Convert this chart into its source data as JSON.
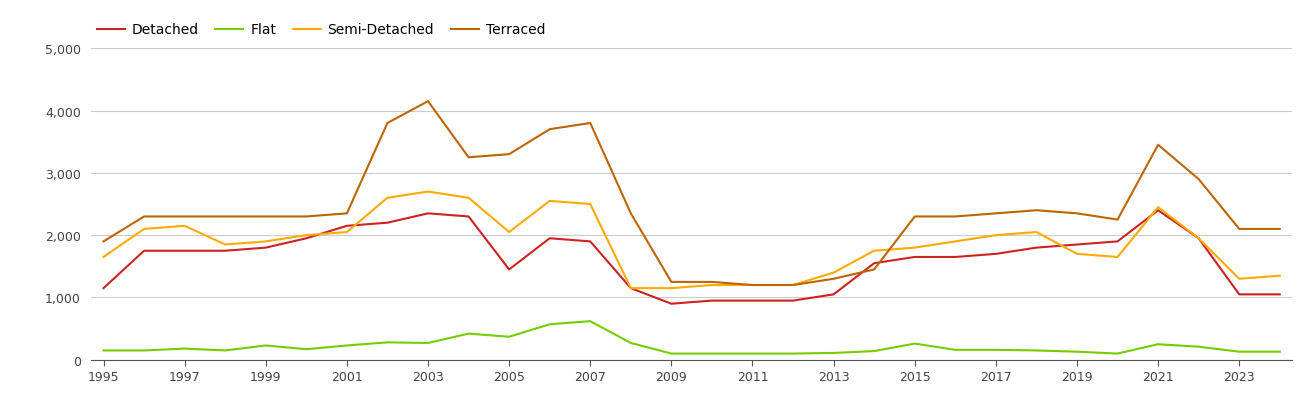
{
  "years": [
    1995,
    1996,
    1997,
    1998,
    1999,
    2000,
    2001,
    2002,
    2003,
    2004,
    2005,
    2006,
    2007,
    2008,
    2009,
    2010,
    2011,
    2012,
    2013,
    2014,
    2015,
    2016,
    2017,
    2018,
    2019,
    2020,
    2021,
    2022,
    2023,
    2024
  ],
  "detached": [
    1150,
    1750,
    1750,
    1750,
    1800,
    1950,
    2150,
    2200,
    2350,
    2300,
    1450,
    1950,
    1900,
    1150,
    900,
    950,
    950,
    950,
    1050,
    1550,
    1650,
    1650,
    1700,
    1800,
    1850,
    1900,
    2400,
    1950,
    1050,
    1050
  ],
  "flat": [
    150,
    150,
    180,
    150,
    230,
    170,
    230,
    280,
    270,
    420,
    370,
    570,
    620,
    270,
    100,
    100,
    100,
    100,
    110,
    140,
    260,
    160,
    160,
    150,
    130,
    100,
    250,
    210,
    130,
    130
  ],
  "semi_detached": [
    1650,
    2100,
    2150,
    1850,
    1900,
    2000,
    2050,
    2600,
    2700,
    2600,
    2050,
    2550,
    2500,
    1150,
    1150,
    1200,
    1200,
    1200,
    1400,
    1750,
    1800,
    1900,
    2000,
    2050,
    1700,
    1650,
    2450,
    1950,
    1300,
    1350
  ],
  "terraced": [
    1900,
    2300,
    2300,
    2300,
    2300,
    2300,
    2350,
    3800,
    4150,
    3250,
    3300,
    3700,
    3800,
    2350,
    1250,
    1250,
    1200,
    1200,
    1300,
    1450,
    2300,
    2300,
    2350,
    2400,
    2350,
    2250,
    3450,
    2900,
    2100,
    2100
  ],
  "colors": {
    "detached": "#cc2222",
    "flat": "#77cc00",
    "semi_detached": "#ffaa00",
    "terraced": "#bb6600"
  },
  "ylim": [
    0,
    5000
  ],
  "yticks": [
    0,
    1000,
    2000,
    3000,
    4000,
    5000
  ],
  "background_color": "#ffffff",
  "grid_color": "#cccccc"
}
